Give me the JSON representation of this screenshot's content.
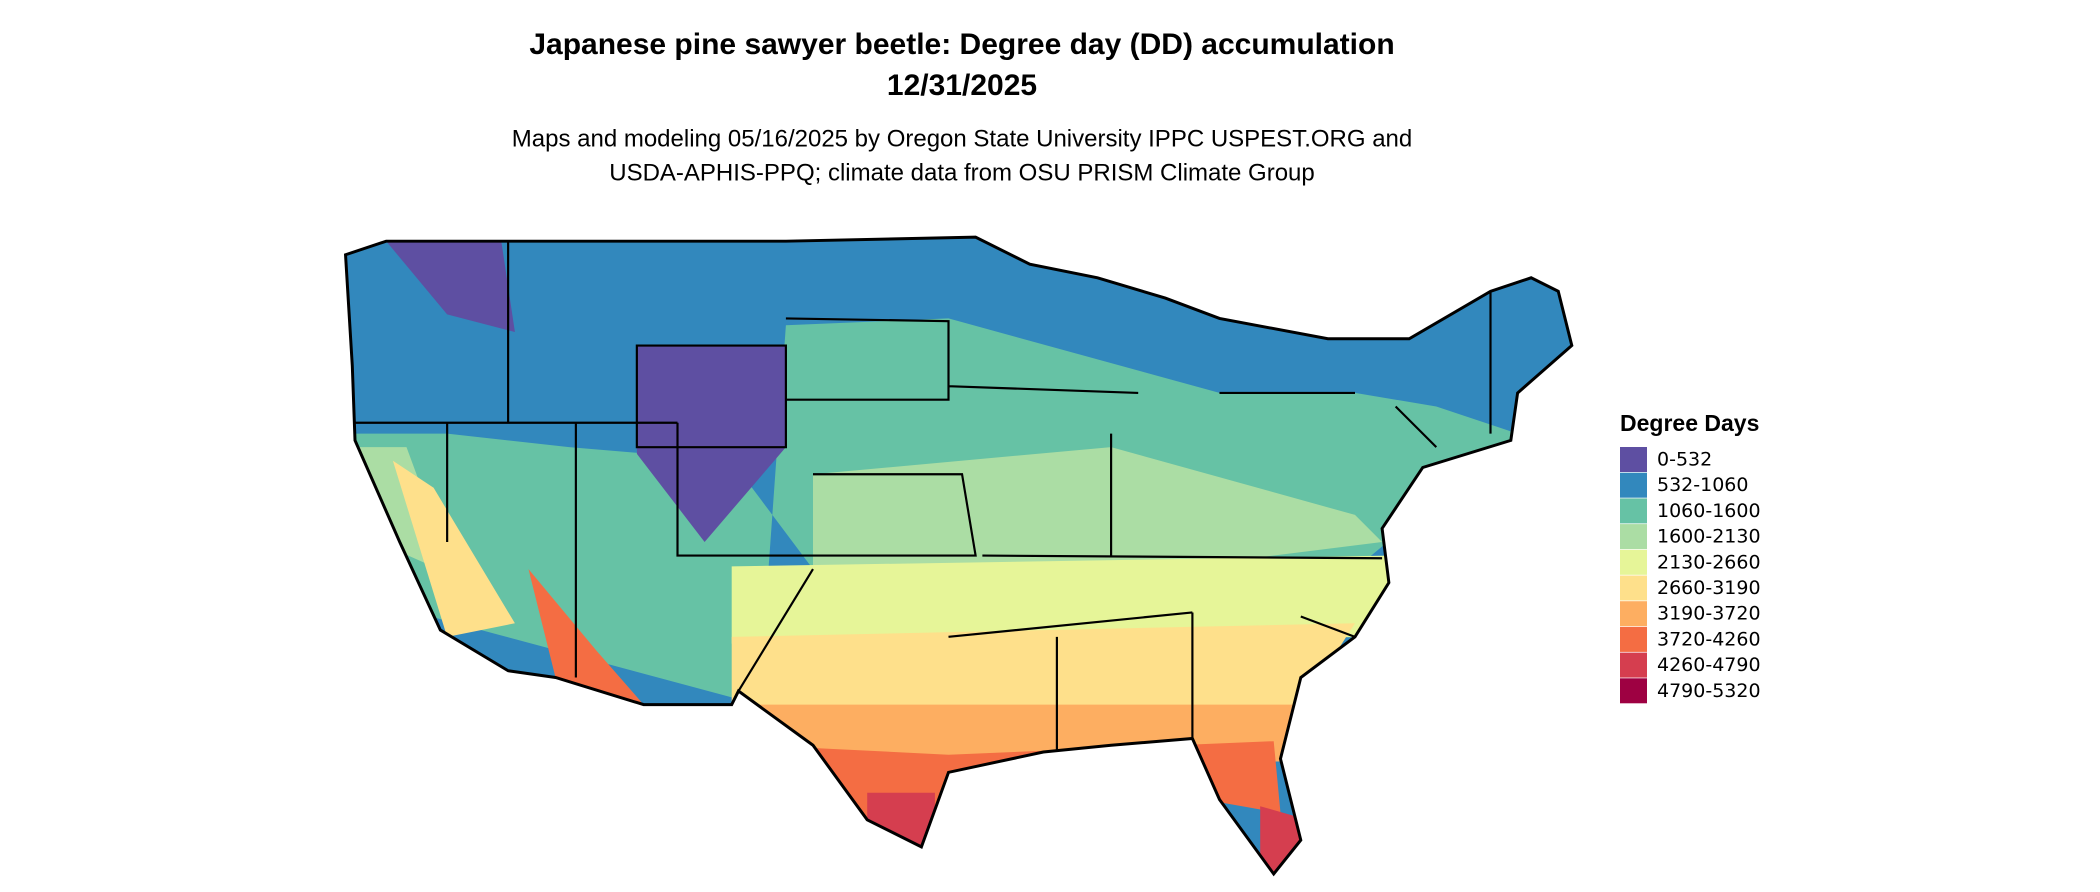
{
  "header": {
    "title": "Japanese pine sawyer beetle: Degree day (DD) accumulation",
    "date": "12/31/2025",
    "subtitle_line1": "Maps and modeling 05/16/2025 by Oregon State University IPPC USPEST.ORG and",
    "subtitle_line2": "USDA-APHIS-PPQ; climate data from OSU PRISM Climate Group"
  },
  "legend": {
    "title": "Degree Days",
    "items": [
      {
        "label": "0-532",
        "color": "#5e4fa2"
      },
      {
        "label": "532-1060",
        "color": "#3288bd"
      },
      {
        "label": "1060-1600",
        "color": "#66c2a5"
      },
      {
        "label": "1600-2130",
        "color": "#abdda4"
      },
      {
        "label": "2130-2660",
        "color": "#e6f598"
      },
      {
        "label": "2660-3190",
        "color": "#fee08b"
      },
      {
        "label": "3190-3720",
        "color": "#fdae61"
      },
      {
        "label": "3720-4260",
        "color": "#f46d43"
      },
      {
        "label": "4260-4790",
        "color": "#d53e4f"
      },
      {
        "label": "4790-5320",
        "color": "#9e0142"
      }
    ]
  }
}
